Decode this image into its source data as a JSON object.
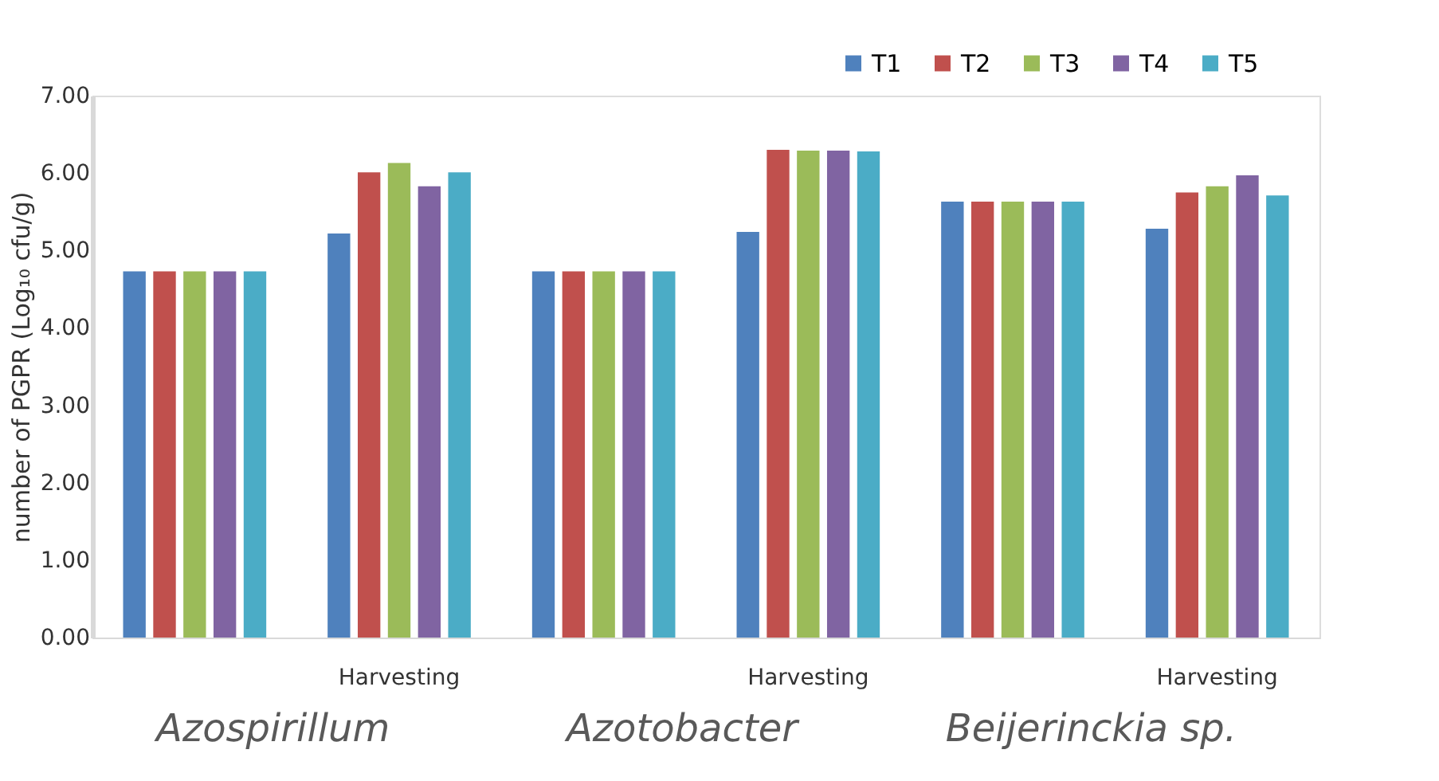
{
  "chart_data": {
    "type": "bar",
    "categories": [
      null,
      "Harvesting",
      null,
      "Harvesting",
      null,
      "Harvesting"
    ],
    "series": [
      {
        "name": "T1",
        "color": "#4f81bd",
        "values": [
          4.73,
          5.22,
          4.73,
          5.24,
          5.63,
          5.28
        ]
      },
      {
        "name": "T2",
        "color": "#c0504d",
        "values": [
          4.73,
          6.01,
          4.73,
          6.3,
          5.63,
          5.75
        ]
      },
      {
        "name": "T3",
        "color": "#9bbb59",
        "values": [
          4.73,
          6.13,
          4.73,
          6.29,
          5.63,
          5.83
        ]
      },
      {
        "name": "T4",
        "color": "#8064a2",
        "values": [
          4.73,
          5.83,
          4.73,
          6.29,
          5.63,
          5.97
        ]
      },
      {
        "name": "T5",
        "color": "#4bacc6",
        "values": [
          4.73,
          6.01,
          4.73,
          6.28,
          5.63,
          5.71
        ]
      }
    ],
    "ylabel": "number of PGPR (Log₁₀ cfu/g)",
    "ylim": [
      0,
      7
    ],
    "yticks": [
      {
        "value": 0,
        "label": "0.00"
      },
      {
        "value": 1,
        "label": "1.00"
      },
      {
        "value": 2,
        "label": "2.00"
      },
      {
        "value": 3,
        "label": "3.00"
      },
      {
        "value": 4,
        "label": "4.00"
      },
      {
        "value": 5,
        "label": "5.00"
      },
      {
        "value": 6,
        "label": "6.00"
      },
      {
        "value": 7,
        "label": "7.00"
      }
    ],
    "annotations": [
      "Azospirillum",
      "Azotobacter",
      "Beijerinckia sp."
    ],
    "legend": "top right",
    "grid": false
  }
}
